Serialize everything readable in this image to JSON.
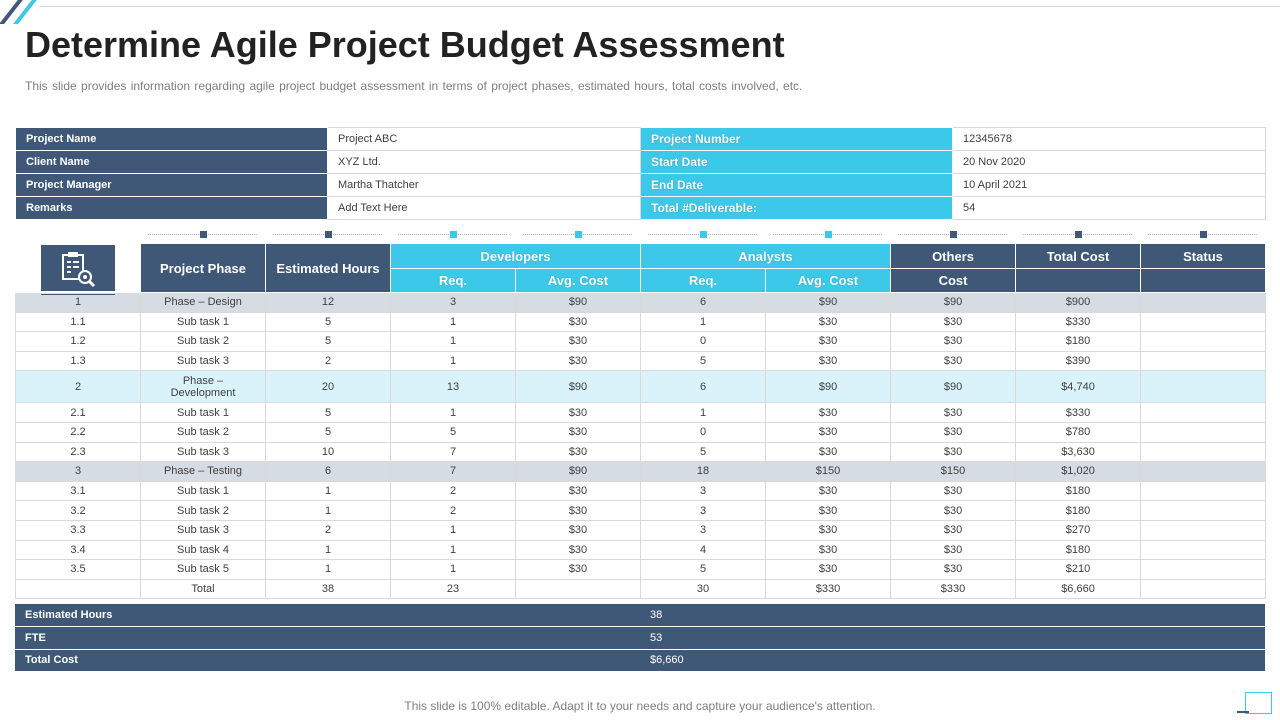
{
  "title": "Determine Agile Project Budget Assessment",
  "subtitle": "This slide provides  information  regarding  agile project  budget assessment in terms of project phases, estimated hours, total costs involved,  etc.",
  "info": {
    "project_name_label": "Project Name",
    "project_name": "Project ABC",
    "client_name_label": "Client Name",
    "client_name": "XYZ Ltd.",
    "project_manager_label": "Project Manager",
    "project_manager": "Martha Thatcher",
    "remarks_label": "Remarks",
    "remarks": "Add Text Here",
    "project_number_label": "Project Number",
    "project_number": "12345678",
    "start_date_label": "Start Date",
    "start_date": "20 Nov 2020",
    "end_date_label": "End Date",
    "end_date": "10 April 2021",
    "total_deliverable_label": "Total #Deliverable:",
    "total_deliverable": "54"
  },
  "headers": {
    "project_phase": "Project Phase",
    "estimated_hours": "Estimated Hours",
    "developers": "Developers",
    "analysts": "Analysts",
    "others": "Others",
    "total_cost": "Total Cost",
    "status": "Status",
    "req": "Req.",
    "avg_cost": "Avg. Cost",
    "cost": "Cost"
  },
  "rows": [
    [
      "1",
      "Phase – Design",
      "12",
      "3",
      "$90",
      "6",
      "$90",
      "$90",
      "$900",
      ""
    ],
    [
      "1.1",
      "Sub task 1",
      "5",
      "1",
      "$30",
      "1",
      "$30",
      "$30",
      "$330",
      ""
    ],
    [
      "1.2",
      "Sub task 2",
      "5",
      "1",
      "$30",
      "0",
      "$30",
      "$30",
      "$180",
      ""
    ],
    [
      "1.3",
      "Sub task 3",
      "2",
      "1",
      "$30",
      "5",
      "$30",
      "$30",
      "$390",
      ""
    ],
    [
      "2",
      "Phase –\nDevelopment",
      "20",
      "13",
      "$90",
      "6",
      "$90",
      "$90",
      "$4,740",
      ""
    ],
    [
      "2.1",
      "Sub task 1",
      "5",
      "1",
      "$30",
      "1",
      "$30",
      "$30",
      "$330",
      ""
    ],
    [
      "2.2",
      "Sub task 2",
      "5",
      "5",
      "$30",
      "0",
      "$30",
      "$30",
      "$780",
      ""
    ],
    [
      "2.3",
      "Sub task 3",
      "10",
      "7",
      "$30",
      "5",
      "$30",
      "$30",
      "$3,630",
      ""
    ],
    [
      "3",
      "Phase – Testing",
      "6",
      "7",
      "$90",
      "18",
      "$150",
      "$150",
      "$1,020",
      ""
    ],
    [
      "3.1",
      "Sub task 1",
      "1",
      "2",
      "$30",
      "3",
      "$30",
      "$30",
      "$180",
      ""
    ],
    [
      "3.2",
      "Sub task 2",
      "1",
      "2",
      "$30",
      "3",
      "$30",
      "$30",
      "$180",
      ""
    ],
    [
      "3.3",
      "Sub task 3",
      "2",
      "1",
      "$30",
      "3",
      "$30",
      "$30",
      "$270",
      ""
    ],
    [
      "3.4",
      "Sub task 4",
      "1",
      "1",
      "$30",
      "4",
      "$30",
      "$30",
      "$180",
      ""
    ],
    [
      "3.5",
      "Sub task 5",
      "1",
      "1",
      "$30",
      "5",
      "$30",
      "$30",
      "$210",
      ""
    ],
    [
      "",
      "Total",
      "38",
      "23",
      "",
      "30",
      "$330",
      "$330",
      "$6,660",
      ""
    ]
  ],
  "summary": {
    "estimated_hours_label": "Estimated Hours",
    "estimated_hours": "38",
    "fte_label": "FTE",
    "fte": "53",
    "total_cost_label": "Total Cost",
    "total_cost": "$6,660"
  },
  "footer": "This slide is 100% editable. Adapt it to your needs and capture your audience's attention.",
  "colors": {
    "dark_blue": "#3f5878",
    "cyan": "#3cc8e8",
    "phase_row": "#d6dce4",
    "phase_row_alt": "#daf3fb"
  },
  "icons": {
    "header_icon": "document-search-icon"
  }
}
